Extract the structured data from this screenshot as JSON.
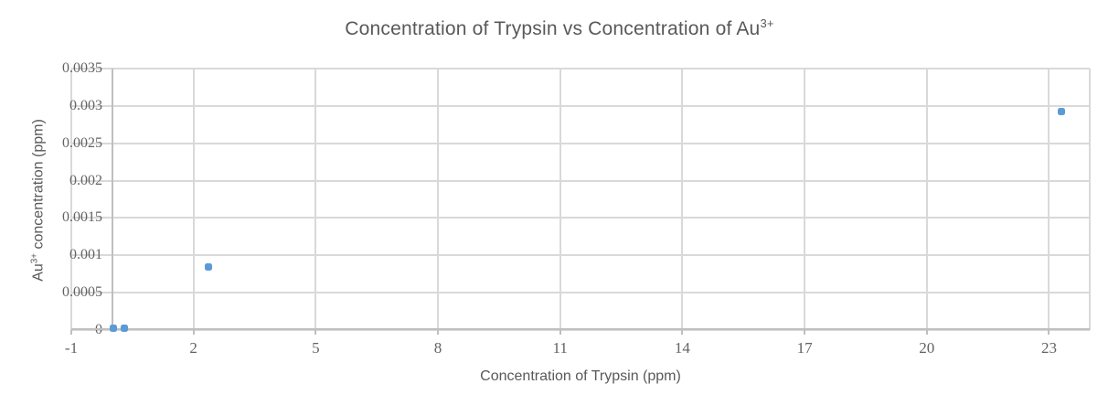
{
  "chart_data": {
    "type": "scatter",
    "title_main": "Concentration of Trypsin vs Concentration of Au",
    "title_sup": "3+",
    "xlabel": "Concentration of Trypsin (ppm)",
    "ylabel_prefix": "Au",
    "ylabel_sup": "3+",
    "ylabel_suffix": " concentration (ppm)",
    "xlim": [
      -1,
      24
    ],
    "ylim": [
      0,
      0.0035
    ],
    "x_ticks": [
      -1,
      2,
      5,
      8,
      11,
      14,
      17,
      20,
      23
    ],
    "x_tick_labels": [
      "-1",
      "2",
      "5",
      "8",
      "11",
      "14",
      "17",
      "20",
      "23"
    ],
    "y_ticks": [
      0,
      0.0005,
      0.001,
      0.0015,
      0.002,
      0.0025,
      0.003,
      0.0035
    ],
    "y_tick_labels": [
      "0",
      "0.0005",
      "0.001",
      "0.0015",
      "0.002",
      "0.0025",
      "0.003",
      "0.0035"
    ],
    "grid": true,
    "legend": "none",
    "y_axis_cross_x": 0,
    "series": [
      {
        "points": [
          [
            0.04,
            2e-05
          ],
          [
            0.3,
            3e-05
          ],
          [
            2.37,
            0.00084
          ],
          [
            23.3,
            0.00292
          ]
        ]
      }
    ],
    "colors": {
      "marker": "#5B9BD5",
      "gridline": "#D9D9D9",
      "axis_line": "#BFBFBF",
      "title_text": "#595959",
      "tick_text": "#636363"
    }
  }
}
